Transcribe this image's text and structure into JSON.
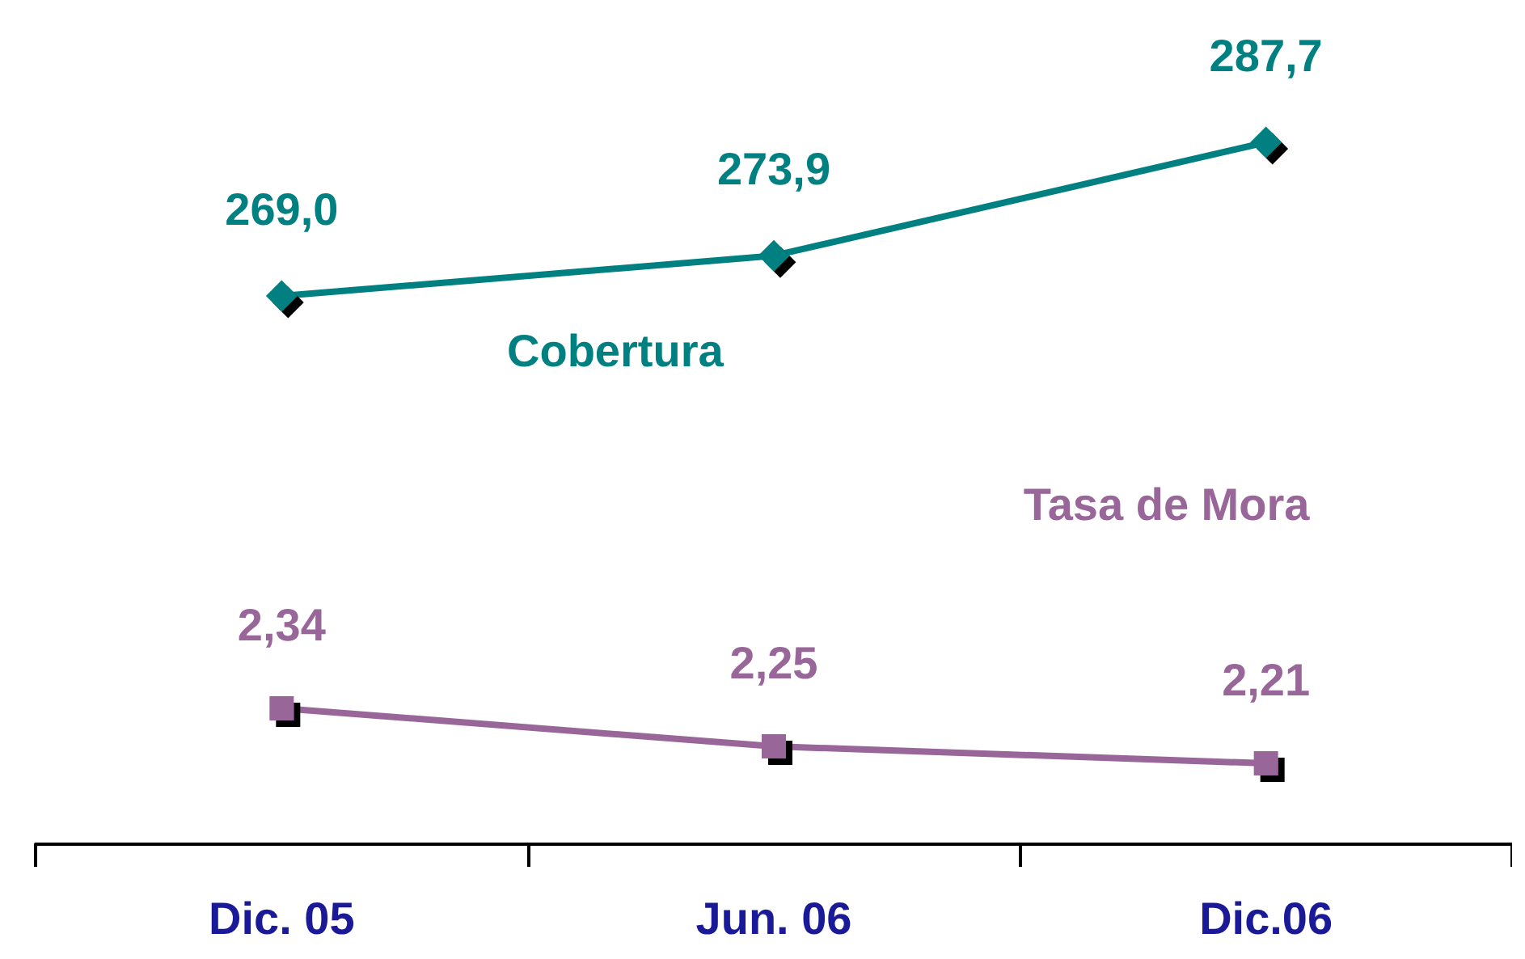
{
  "chart_data": [
    {
      "type": "line",
      "categories": [
        null,
        null,
        null
      ],
      "tick_labels": false,
      "grid": false,
      "series": [
        {
          "name": "Cobertura",
          "color": "#008080",
          "marker": "diamond",
          "values": [
            269.0,
            273.9,
            287.7
          ],
          "value_labels": [
            "269,0",
            "273,9",
            "287,7"
          ]
        }
      ]
    },
    {
      "type": "line",
      "categories": [
        "Dic. 05",
        "Jun. 06",
        "Dic.06"
      ],
      "tick_labels": "x",
      "grid": false,
      "series": [
        {
          "name": "Tasa de Mora",
          "color": "#996699",
          "marker": "square",
          "values": [
            2.34,
            2.25,
            2.21
          ],
          "value_labels": [
            "2,34",
            "2,25",
            "2,21"
          ]
        }
      ]
    }
  ]
}
